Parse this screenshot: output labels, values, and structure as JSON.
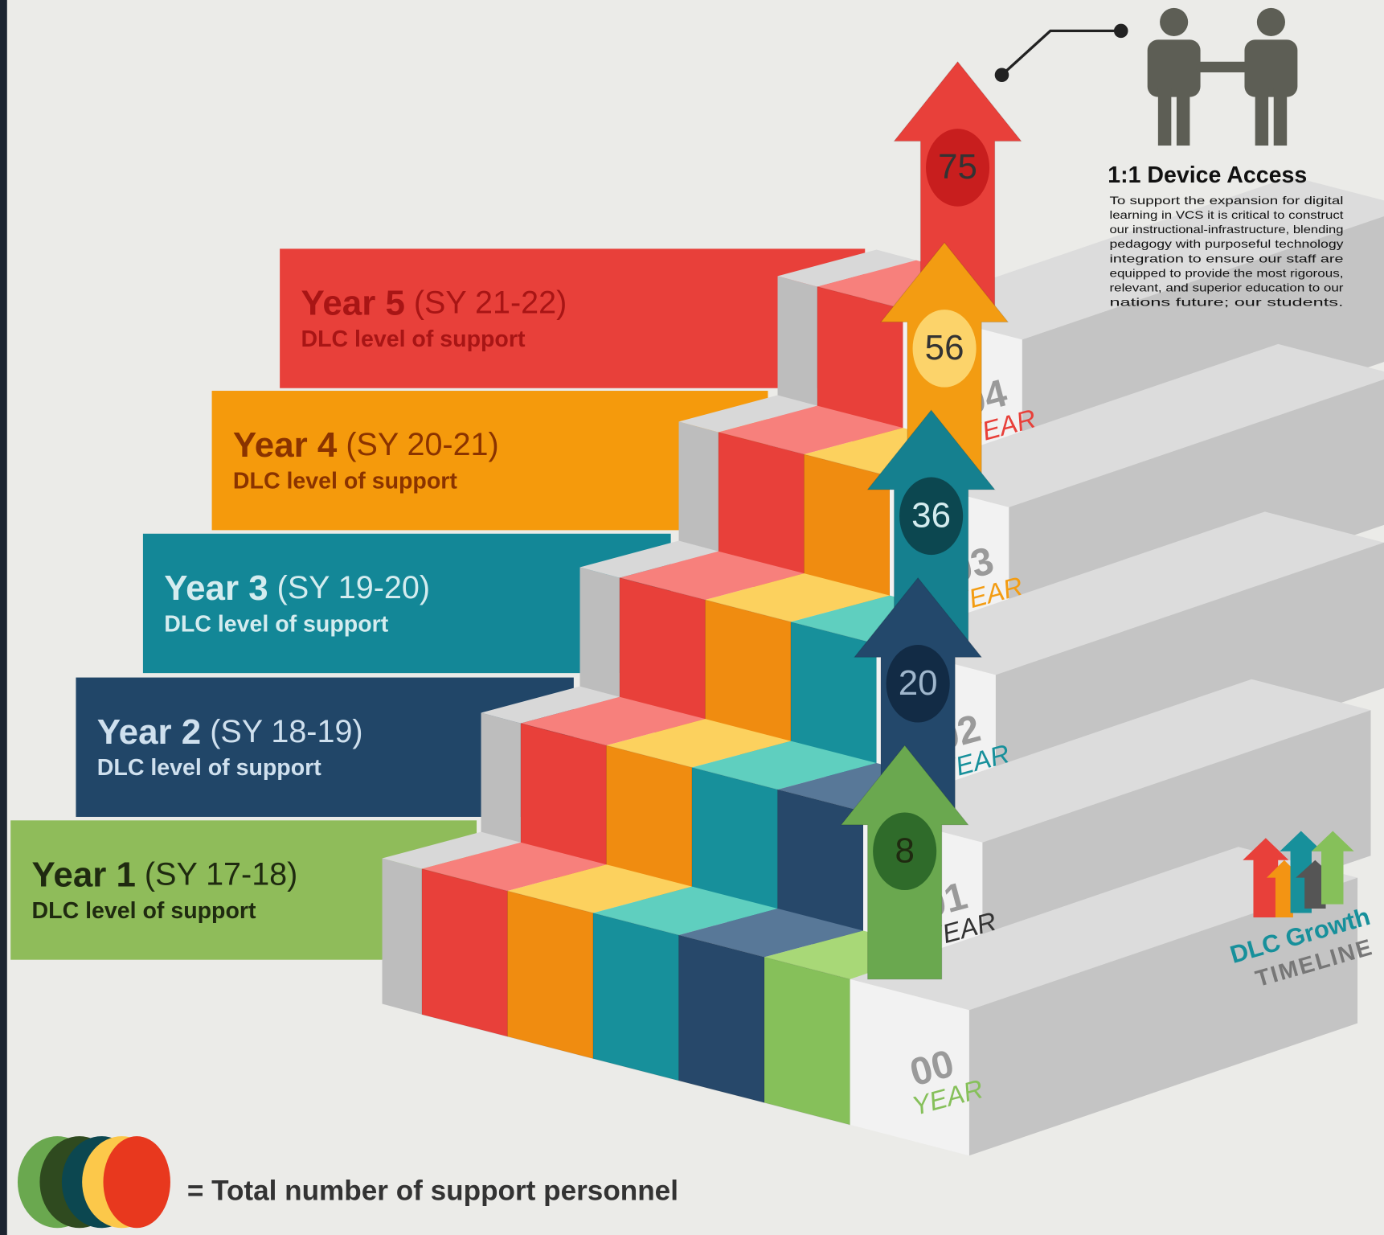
{
  "steps": [
    {
      "title": "Year 1",
      "period": "(SY 17-18)",
      "subtitle": "DLC level of support",
      "count": 8
    },
    {
      "title": "Year 2",
      "period": "(SY 18-19)",
      "subtitle": "DLC level of support",
      "count": 20
    },
    {
      "title": "Year 3",
      "period": "(SY 19-20)",
      "subtitle": "DLC level of support",
      "count": 36
    },
    {
      "title": "Year 4",
      "period": "(SY 20-21)",
      "subtitle": "DLC level of support",
      "count": 56
    },
    {
      "title": "Year 5",
      "period": "(SY 21-22)",
      "subtitle": "DLC level of support",
      "count": 75
    }
  ],
  "year_labels": [
    {
      "number": "00",
      "word": "YEAR"
    },
    {
      "number": "01",
      "word": "YEAR"
    },
    {
      "number": "02",
      "word": "YEAR"
    },
    {
      "number": "03",
      "word": "YEAR"
    },
    {
      "number": "04",
      "word": "YEAR"
    }
  ],
  "device_access": {
    "heading": "1:1 Device Access",
    "lines": [
      "To support the expansion for digital",
      "learning in VCS it is critical to construct",
      "our instructional-infrastructure, blending",
      "pedagogy with purposeful technology",
      "integration to ensure our staff are",
      "equipped to provide the most rigorous,",
      "relevant, and superior education to our",
      "nations future; our students."
    ]
  },
  "logo": {
    "line1": "DLC Growth",
    "line2": "TIMELINE"
  },
  "legend": {
    "text": "= Total number of support personnel"
  }
}
